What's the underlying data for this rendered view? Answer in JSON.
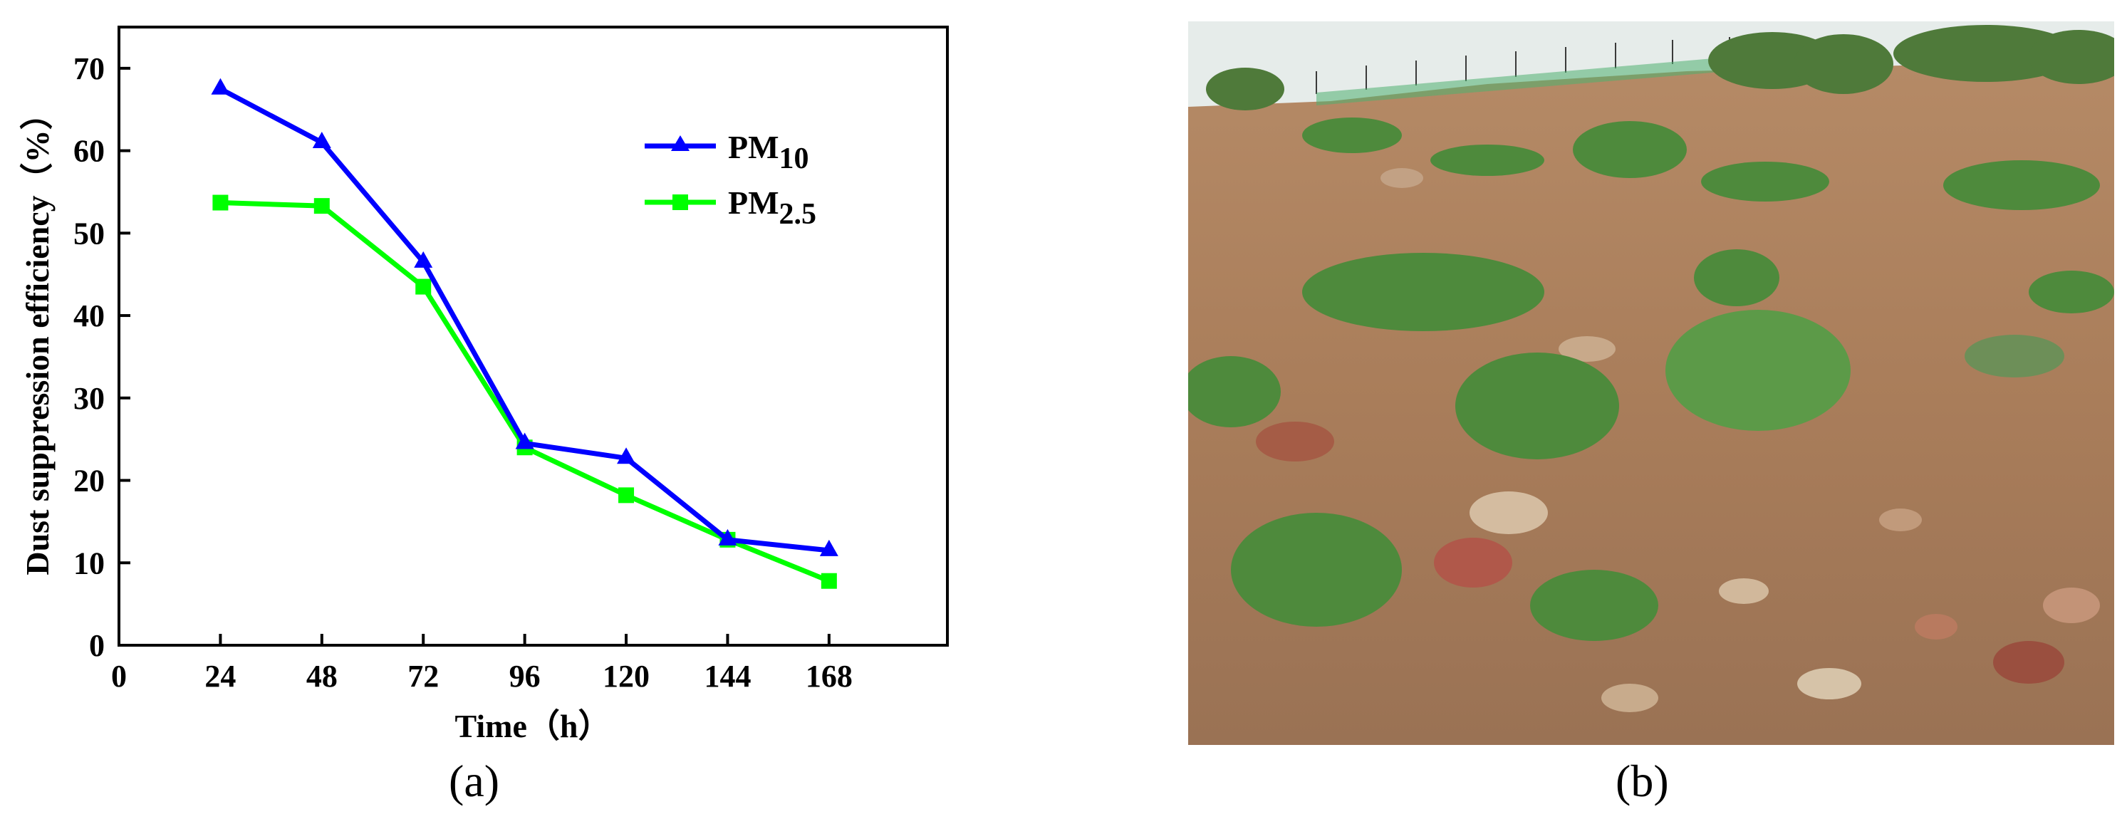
{
  "chart_data": {
    "type": "line",
    "xlabel": "Time（h）",
    "ylabel": "Dust suppression efficiency（%）",
    "x_ticks": [
      0,
      24,
      48,
      72,
      96,
      120,
      144,
      168
    ],
    "y_ticks": [
      0,
      10,
      20,
      30,
      40,
      50,
      60,
      70
    ],
    "xlim": [
      0,
      196
    ],
    "ylim": [
      0,
      75
    ],
    "legend_position": "top-right",
    "series": [
      {
        "name": "PM10",
        "name_main": "PM",
        "name_sub": "10",
        "color": "#0000ff",
        "marker": "triangle",
        "x": [
          24,
          48,
          72,
          96,
          120,
          144,
          168
        ],
        "y": [
          67.5,
          61.0,
          46.5,
          24.5,
          22.7,
          12.8,
          11.5
        ]
      },
      {
        "name": "PM2.5",
        "name_main": "PM",
        "name_sub": "2.5",
        "color": "#00ff00",
        "marker": "square",
        "x": [
          24,
          48,
          72,
          96,
          120,
          144,
          168
        ],
        "y": [
          53.7,
          53.3,
          43.5,
          24.0,
          18.2,
          12.8,
          7.8
        ]
      }
    ]
  },
  "captions": {
    "a": "(a)",
    "b": "(b)"
  },
  "photo": {
    "description_icon": "soil-slope-photo"
  }
}
